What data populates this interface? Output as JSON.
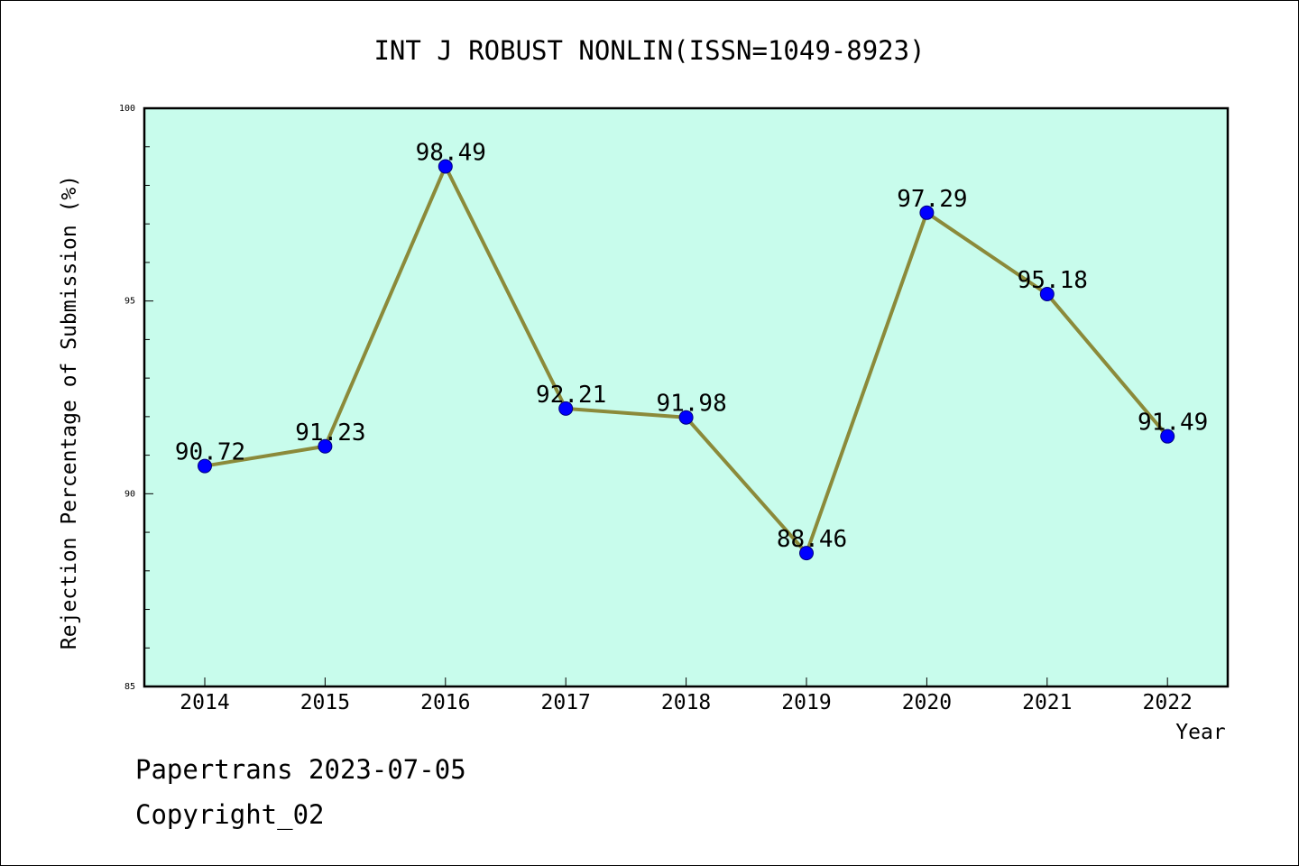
{
  "chart_data": {
    "type": "line",
    "title": "INT J ROBUST NONLIN(ISSN=1049-8923)",
    "xlabel": "Year",
    "ylabel": "Rejection Percentage of Submission (%)",
    "x": [
      "2014",
      "2015",
      "2016",
      "2017",
      "2018",
      "2019",
      "2020",
      "2021",
      "2022"
    ],
    "series": [
      {
        "values": [
          90.72,
          91.23,
          98.49,
          92.21,
          91.98,
          88.46,
          97.29,
          95.18,
          91.49
        ],
        "labels": [
          "90.72",
          "91.23",
          "98.49",
          "92.21",
          "91.98",
          "88.46",
          "97.29",
          "95.18",
          "91.49"
        ]
      }
    ],
    "ylim": [
      85,
      100
    ],
    "yticks": [
      "85",
      "90",
      "95",
      "100"
    ],
    "grid": false,
    "colors": {
      "plot_background": "#c8fcec",
      "line": "#8b8a3a",
      "marker": "#0000ff"
    }
  },
  "footer": {
    "line1": "Papertrans 2023-07-05",
    "line2": "Copyright_02"
  }
}
